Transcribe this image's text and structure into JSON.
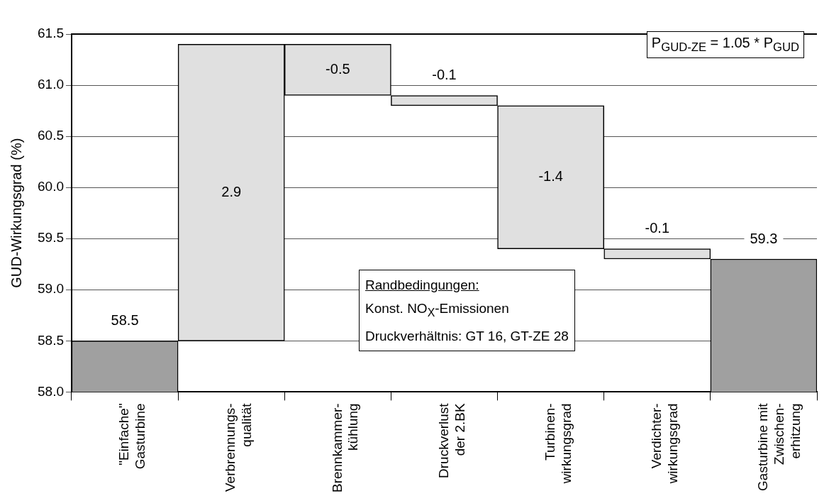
{
  "chart_data": {
    "type": "bar",
    "ylabel": "GUD-Wirkungsgrad (%)",
    "categories": [
      "\"Einfache\"\nGasturbine",
      "Verbrennungs-\nqualität",
      "Brennkammer-\nkühlung",
      "Druckverlust\nder 2.BK",
      "Turbinen-\nwirkungsgrad",
      "Verdichter-\nwirkungsgrad",
      "Gasturbine mit\nZwischen-\nerhitzung"
    ],
    "values": [
      58.5,
      2.9,
      -0.5,
      -0.1,
      -1.4,
      -0.1,
      59.3
    ],
    "base": [
      null,
      58.5,
      61.4,
      60.9,
      60.8,
      59.4,
      null
    ],
    "colors": [
      "#a0a0a0",
      "#e0e0e0",
      "#e0e0e0",
      "#e0e0e0",
      "#e0e0e0",
      "#e0e0e0",
      "#a0a0a0"
    ],
    "ylim": [
      58,
      61.5
    ],
    "yticks": [
      {
        "value": 58,
        "label": "58.0"
      },
      {
        "value": 58.5,
        "label": "58.5"
      },
      {
        "value": 59,
        "label": "59.0"
      },
      {
        "value": 59.5,
        "label": "59.5"
      },
      {
        "value": 60,
        "label": "60.0"
      },
      {
        "value": 60.5,
        "label": "60.5"
      },
      {
        "value": 61,
        "label": "61.0"
      },
      {
        "value": 61.5,
        "label": "61.5"
      }
    ],
    "grid": "y",
    "legend": false,
    "data_labels": true,
    "annotations": [
      "P$_{GUD-ZE}$ = 1.05 * P$_{GUD}$",
      "Randbedingungen:",
      "Konst. NO$_{X}$-Emissionen",
      "Druckverhältnis: GT 16, GT-ZE 28"
    ]
  }
}
